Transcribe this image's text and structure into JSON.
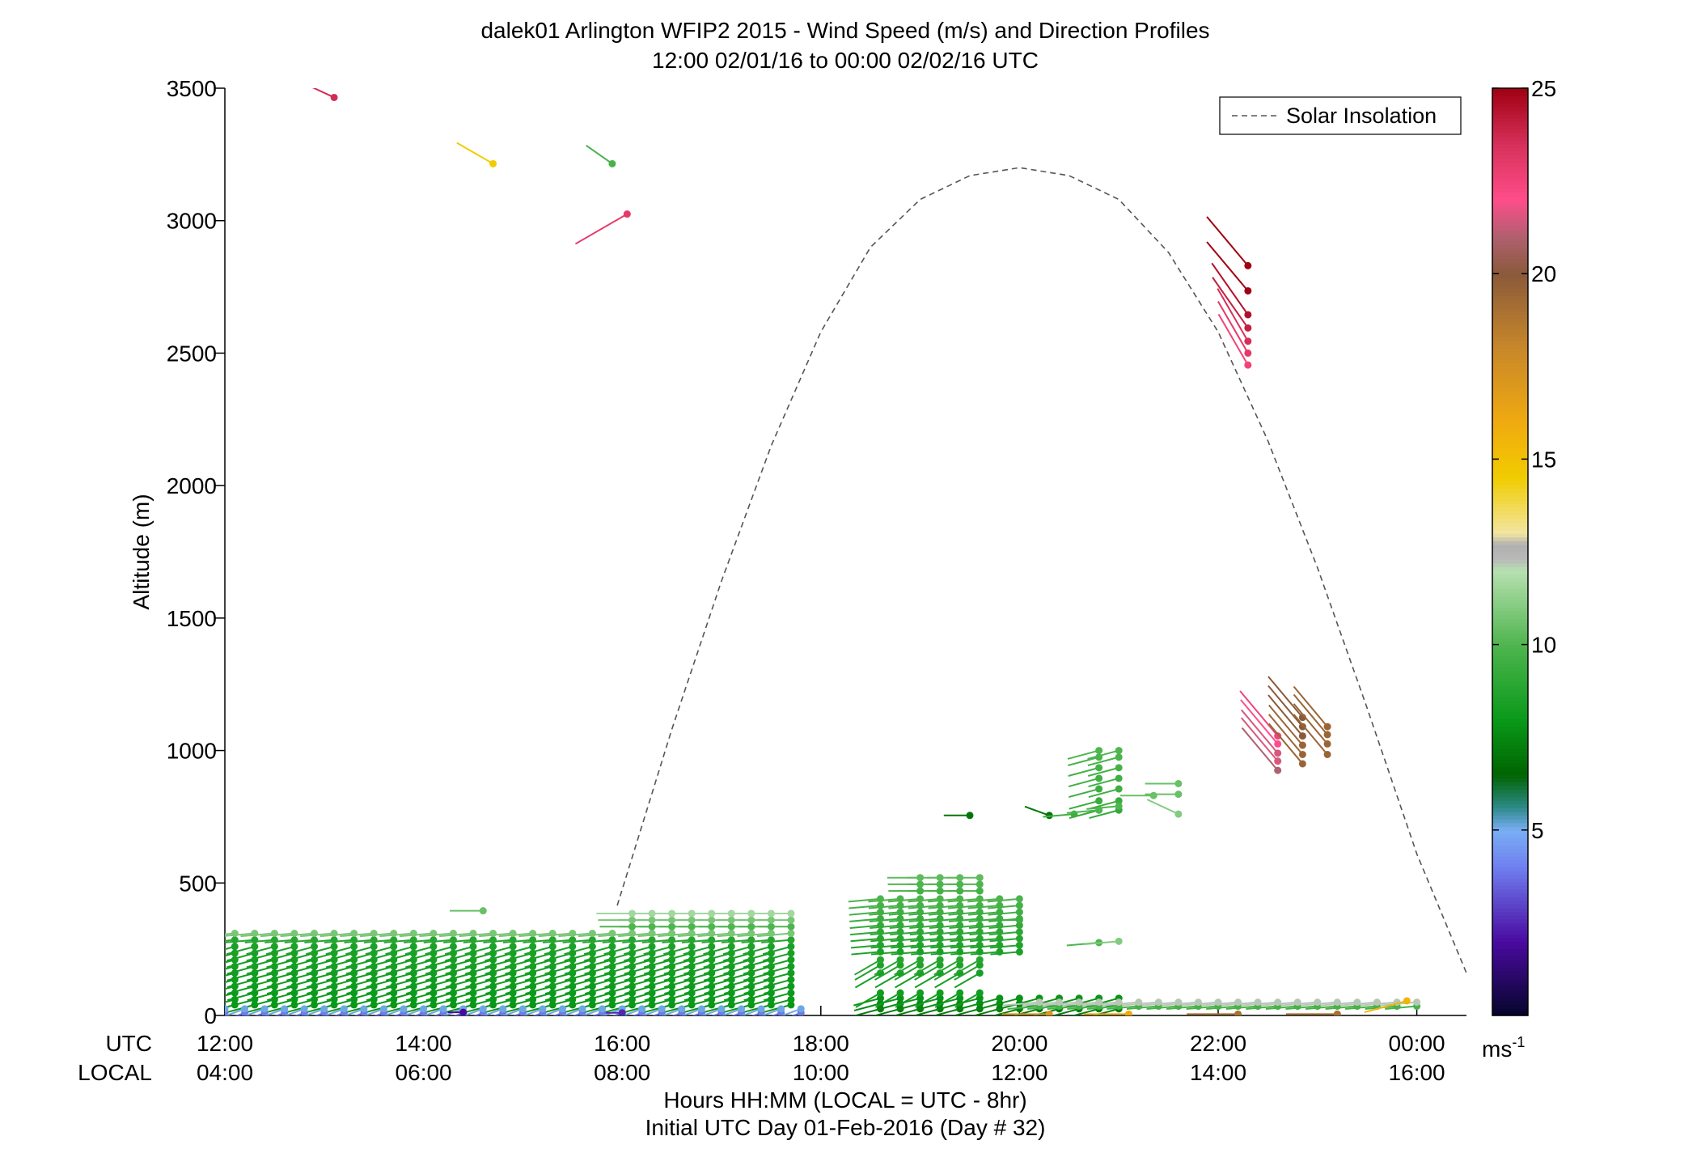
{
  "chart_data": {
    "type": "scatter",
    "title": "dalek01 Arlington WFIP2 2015 - Wind Speed (m/s) and Direction Profiles",
    "subtitle": "12:00 02/01/16 to 00:00 02/02/16  UTC",
    "ylabel": "Altitude (m)",
    "xlabel": "Hours HH:MM  (LOCAL = UTC - 8hr)",
    "xlabel2": "Initial UTC Day 01-Feb-2016 (Day # 32)",
    "row_label_utc": "UTC",
    "row_label_local": "LOCAL",
    "xlim": [
      12,
      24.5
    ],
    "ylim": [
      0,
      3500
    ],
    "x_ticks": [
      {
        "v": 12,
        "utc": "12:00",
        "local": "04:00"
      },
      {
        "v": 14,
        "utc": "14:00",
        "local": "06:00"
      },
      {
        "v": 16,
        "utc": "16:00",
        "local": "08:00"
      },
      {
        "v": 18,
        "utc": "18:00",
        "local": "10:00"
      },
      {
        "v": 20,
        "utc": "20:00",
        "local": "12:00"
      },
      {
        "v": 22,
        "utc": "22:00",
        "local": "14:00"
      },
      {
        "v": 24,
        "utc": "00:00",
        "local": "16:00"
      }
    ],
    "y_ticks": [
      0,
      500,
      1000,
      1500,
      2000,
      2500,
      3000,
      3500
    ],
    "legend": {
      "label": "Solar Insolation",
      "position": "top-right"
    },
    "colorbar": {
      "range": [
        0,
        25
      ],
      "ticks": [
        5,
        10,
        15,
        20,
        25
      ],
      "unit_label": "ms",
      "unit_exponent": "-1",
      "stops": [
        {
          "v": 0,
          "c": "#05052a"
        },
        {
          "v": 2,
          "c": "#4a0aa0"
        },
        {
          "v": 4,
          "c": "#6f7ff0"
        },
        {
          "v": 5,
          "c": "#7aaef5"
        },
        {
          "v": 5.6,
          "c": "#2e8a8a"
        },
        {
          "v": 6.5,
          "c": "#006400"
        },
        {
          "v": 8,
          "c": "#0a9a1a"
        },
        {
          "v": 10,
          "c": "#4fb54f"
        },
        {
          "v": 12,
          "c": "#b7e0b0"
        },
        {
          "v": 12.3,
          "c": "#b9b9b9"
        },
        {
          "v": 12.7,
          "c": "#b0b0b0"
        },
        {
          "v": 13,
          "c": "#f2e6a2"
        },
        {
          "v": 14.5,
          "c": "#f1cc00"
        },
        {
          "v": 16,
          "c": "#f0aa10"
        },
        {
          "v": 18,
          "c": "#c8872a"
        },
        {
          "v": 20,
          "c": "#8a5a3a"
        },
        {
          "v": 21,
          "c": "#b06070"
        },
        {
          "v": 22,
          "c": "#ff4d8a"
        },
        {
          "v": 23.5,
          "c": "#d6305a"
        },
        {
          "v": 25,
          "c": "#a00012"
        }
      ]
    },
    "solar_insolation_curve": [
      [
        15.95,
        415
      ],
      [
        16.5,
        1080
      ],
      [
        17,
        1640
      ],
      [
        17.5,
        2150
      ],
      [
        18,
        2580
      ],
      [
        18.5,
        2900
      ],
      [
        19,
        3080
      ],
      [
        19.5,
        3170
      ],
      [
        20,
        3200
      ],
      [
        20.5,
        3170
      ],
      [
        21,
        3080
      ],
      [
        21.5,
        2880
      ],
      [
        22,
        2580
      ],
      [
        22.5,
        2170
      ],
      [
        23,
        1690
      ],
      [
        23.5,
        1160
      ],
      [
        24,
        610
      ],
      [
        24.5,
        160
      ]
    ],
    "barb_groups": [
      {
        "t0": 11.9,
        "t1": 17.85,
        "dt": 0.2,
        "heights": [
          40,
          60,
          85,
          110,
          135,
          160,
          185,
          210,
          235,
          260
        ],
        "speed": 8.2,
        "dir": 255,
        "gradient": 0.3
      },
      {
        "t0": 12.1,
        "t1": 17.7,
        "dt": 0.2,
        "heights": [
          285,
          310
        ],
        "speed": 9.8,
        "dir": 265,
        "gradient": 1.0
      },
      {
        "t0": 16.1,
        "t1": 17.85,
        "dt": 0.2,
        "heights": [
          335,
          360,
          385
        ],
        "speed": 10.8,
        "dir": 270,
        "gradient": 0.8
      },
      {
        "t0": 12.0,
        "t1": 17.85,
        "dt": 0.2,
        "heights": [
          10,
          25
        ],
        "speed": 4.5,
        "dir": 250,
        "gradient": 0.6
      },
      {
        "t0": 18.6,
        "t1": 21.0,
        "dt": 0.2,
        "heights": [
          25,
          45,
          65
        ],
        "speed": 7.5,
        "dir": 255,
        "gradient": 0.3
      },
      {
        "t0": 18.6,
        "t1": 19.6,
        "dt": 0.2,
        "heights": [
          85,
          160,
          190,
          210
        ],
        "speed": 8.5,
        "dir": 240,
        "gradient": 0.3
      },
      {
        "t0": 18.6,
        "t1": 20.0,
        "dt": 0.2,
        "heights": [
          240,
          265,
          290,
          315,
          340,
          365,
          390,
          415,
          440
        ],
        "speed": 9.2,
        "dir": 265,
        "gradient": 0.7
      },
      {
        "t0": 19.0,
        "t1": 19.6,
        "dt": 0.2,
        "heights": [
          470,
          495,
          520
        ],
        "speed": 10.0,
        "dir": 270,
        "gradient": 0.3
      },
      {
        "t0": 20.2,
        "t1": 24.0,
        "dt": 0.2,
        "heights": [
          35,
          50
        ],
        "speed": 11.0,
        "dir": 265,
        "gradient": 1.2
      },
      {
        "t0": 20.8,
        "t1": 21.0,
        "dt": 0.2,
        "heights": [
          775,
          810,
          855,
          895,
          935,
          975,
          1000
        ],
        "speed": 9.6,
        "dir": 255,
        "gradient": 0.4
      }
    ],
    "barb_points": [
      {
        "t": 13.1,
        "z": 3465,
        "s": 23.6,
        "dir": 295
      },
      {
        "t": 14.7,
        "z": 3215,
        "s": 14.5,
        "dir": 300
      },
      {
        "t": 15.9,
        "z": 3215,
        "s": 9.8,
        "dir": 305
      },
      {
        "t": 16.05,
        "z": 3025,
        "s": 23.0,
        "dir": 240
      },
      {
        "t": 22.3,
        "z": 2830,
        "s": 25.0,
        "dir": 320
      },
      {
        "t": 22.3,
        "z": 2735,
        "s": 25.0,
        "dir": 320
      },
      {
        "t": 22.3,
        "z": 2645,
        "s": 24.5,
        "dir": 325
      },
      {
        "t": 22.3,
        "z": 2595,
        "s": 24.0,
        "dir": 325
      },
      {
        "t": 22.3,
        "z": 2545,
        "s": 23.5,
        "dir": 330
      },
      {
        "t": 22.3,
        "z": 2500,
        "s": 23.0,
        "dir": 330
      },
      {
        "t": 22.3,
        "z": 2455,
        "s": 22.5,
        "dir": 330
      },
      {
        "t": 22.6,
        "z": 1055,
        "s": 22.5,
        "dir": 320
      },
      {
        "t": 22.6,
        "z": 1025,
        "s": 22.0,
        "dir": 320
      },
      {
        "t": 22.6,
        "z": 990,
        "s": 21.5,
        "dir": 320
      },
      {
        "t": 22.6,
        "z": 960,
        "s": 21.5,
        "dir": 320
      },
      {
        "t": 22.6,
        "z": 925,
        "s": 21.0,
        "dir": 320
      },
      {
        "t": 22.85,
        "z": 1125,
        "s": 20.0,
        "dir": 320
      },
      {
        "t": 22.85,
        "z": 1090,
        "s": 20.0,
        "dir": 320
      },
      {
        "t": 22.85,
        "z": 1055,
        "s": 20.0,
        "dir": 320
      },
      {
        "t": 22.85,
        "z": 1020,
        "s": 19.5,
        "dir": 320
      },
      {
        "t": 22.85,
        "z": 985,
        "s": 19.5,
        "dir": 320
      },
      {
        "t": 22.85,
        "z": 950,
        "s": 19.5,
        "dir": 320
      },
      {
        "t": 23.1,
        "z": 1090,
        "s": 19.5,
        "dir": 320
      },
      {
        "t": 23.1,
        "z": 1060,
        "s": 19.5,
        "dir": 320
      },
      {
        "t": 23.1,
        "z": 1025,
        "s": 19.5,
        "dir": 320
      },
      {
        "t": 23.1,
        "z": 985,
        "s": 19.5,
        "dir": 320
      },
      {
        "t": 19.5,
        "z": 755,
        "s": 7.0,
        "dir": 270
      },
      {
        "t": 20.3,
        "z": 755,
        "s": 7.0,
        "dir": 290
      },
      {
        "t": 20.55,
        "z": 760,
        "s": 9.5,
        "dir": 265
      },
      {
        "t": 20.8,
        "z": 775,
        "s": 10.0,
        "dir": 265
      },
      {
        "t": 21.0,
        "z": 790,
        "s": 10.0,
        "dir": 265
      },
      {
        "t": 21.35,
        "z": 830,
        "s": 10.5,
        "dir": 270
      },
      {
        "t": 21.6,
        "z": 760,
        "s": 11.0,
        "dir": 295
      },
      {
        "t": 21.6,
        "z": 875,
        "s": 10.5,
        "dir": 270
      },
      {
        "t": 21.6,
        "z": 835,
        "s": 10.5,
        "dir": 270
      },
      {
        "t": 20.0,
        "z": 360,
        "s": 9.5,
        "dir": 270
      },
      {
        "t": 20.8,
        "z": 275,
        "s": 10.0,
        "dir": 265
      },
      {
        "t": 21.0,
        "z": 280,
        "s": 11.0,
        "dir": 265
      },
      {
        "t": 14.6,
        "z": 395,
        "s": 10.5,
        "dir": 270
      },
      {
        "t": 23.9,
        "z": 55,
        "s": 15.5,
        "dir": 255
      },
      {
        "t": 23.2,
        "z": 5,
        "s": 19.0,
        "dir": 270
      },
      {
        "t": 21.1,
        "z": 5,
        "s": 16.0,
        "dir": 270
      },
      {
        "t": 20.3,
        "z": 5,
        "s": 17.0,
        "dir": 270
      },
      {
        "t": 22.2,
        "z": 5,
        "s": 19.0,
        "dir": 270
      },
      {
        "t": 16.0,
        "z": 10,
        "s": 2.5,
        "dir": 270
      },
      {
        "t": 14.4,
        "z": 12,
        "s": 2.0,
        "dir": 270
      }
    ]
  }
}
